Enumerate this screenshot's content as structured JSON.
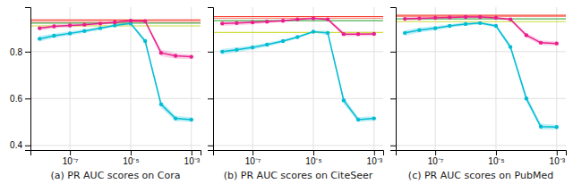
{
  "chart_data": [
    {
      "type": "line",
      "x_label": "(a) PR AUC scores on Cora",
      "x": [
        1e-08,
        3e-08,
        1e-07,
        3e-07,
        1e-06,
        3e-06,
        1e-05,
        3e-05,
        0.0001,
        0.0003,
        0.001
      ],
      "series": [
        {
          "color": "#00bcd4",
          "marker": "circle",
          "values": [
            0.855,
            0.868,
            0.878,
            0.888,
            0.9,
            0.912,
            0.92,
            0.845,
            0.575,
            0.515,
            0.51
          ],
          "errors": [
            0.012,
            0.01,
            0.009,
            0.008,
            0.007,
            0.006,
            0.005,
            0.01,
            0.015,
            0.012,
            0.01
          ]
        },
        {
          "color": "#e91e8c",
          "marker": "circle",
          "values": [
            0.9,
            0.908,
            0.912,
            0.915,
            0.92,
            0.925,
            0.932,
            0.93,
            0.795,
            0.782,
            0.778
          ],
          "errors": [
            0.01,
            0.009,
            0.008,
            0.007,
            0.006,
            0.005,
            0.005,
            0.005,
            0.015,
            0.012,
            0.01
          ]
        }
      ],
      "reference_lines": [
        {
          "value": 0.935,
          "color": "#f44336"
        },
        {
          "value": 0.928,
          "color": "#ff8a80"
        },
        {
          "value": 0.922,
          "color": "#4caf50"
        },
        {
          "value": 0.91,
          "color": "#cddc39"
        }
      ],
      "log": "x",
      "xlim": [
        5e-09,
        0.002
      ],
      "xticks": [
        {
          "value": 1e-07,
          "label": "10⁻⁷"
        },
        {
          "value": 1e-05,
          "label": "10⁻⁵"
        },
        {
          "value": 0.001,
          "label": "10⁻³"
        }
      ],
      "ylim": [
        0.38,
        0.99
      ],
      "yticks": [
        0.4,
        0.6,
        0.8
      ],
      "grid": true
    },
    {
      "type": "line",
      "x_label": "(b) PR AUC scores on CiteSeer",
      "x": [
        1e-08,
        3e-08,
        1e-07,
        3e-07,
        1e-06,
        3e-06,
        1e-05,
        3e-05,
        0.0001,
        0.0003,
        0.001
      ],
      "series": [
        {
          "color": "#00bcd4",
          "marker": "circle",
          "values": [
            0.8,
            0.808,
            0.818,
            0.83,
            0.845,
            0.862,
            0.885,
            0.88,
            0.592,
            0.51,
            0.515
          ],
          "errors": [
            0.012,
            0.01,
            0.009,
            0.008,
            0.007,
            0.006,
            0.005,
            0.01,
            0.015,
            0.01,
            0.01
          ]
        },
        {
          "color": "#e91e8c",
          "marker": "circle",
          "values": [
            0.92,
            0.922,
            0.925,
            0.928,
            0.932,
            0.938,
            0.942,
            0.938,
            0.875,
            0.875,
            0.876
          ],
          "errors": [
            0.01,
            0.009,
            0.008,
            0.007,
            0.006,
            0.005,
            0.004,
            0.005,
            0.01,
            0.009,
            0.009
          ]
        }
      ],
      "reference_lines": [
        {
          "value": 0.95,
          "color": "#f44336"
        },
        {
          "value": 0.943,
          "color": "#ff8a80"
        },
        {
          "value": 0.932,
          "color": "#4caf50"
        },
        {
          "value": 0.882,
          "color": "#cddc39"
        }
      ],
      "log": "x",
      "xlim": [
        5e-09,
        0.002
      ],
      "xticks": [
        {
          "value": 1e-07,
          "label": "10⁻⁷"
        },
        {
          "value": 1e-05,
          "label": "10⁻⁵"
        },
        {
          "value": 0.001,
          "label": "10⁻³"
        }
      ],
      "ylim": [
        0.38,
        0.99
      ],
      "yticks": [
        0.4,
        0.6,
        0.8
      ],
      "grid": true,
      "tick_labels": "x"
    },
    {
      "type": "line",
      "x_label": "(c) PR AUC scores on PubMed",
      "x": [
        1e-08,
        3e-08,
        1e-07,
        3e-07,
        1e-06,
        3e-06,
        1e-05,
        3e-05,
        0.0001,
        0.0003,
        0.001
      ],
      "series": [
        {
          "color": "#00bcd4",
          "marker": "circle",
          "values": [
            0.88,
            0.892,
            0.9,
            0.91,
            0.918,
            0.922,
            0.91,
            0.82,
            0.6,
            0.48,
            0.478
          ],
          "errors": [
            0.012,
            0.01,
            0.009,
            0.008,
            0.007,
            0.006,
            0.007,
            0.012,
            0.015,
            0.012,
            0.01
          ]
        },
        {
          "color": "#e91e8c",
          "marker": "circle",
          "values": [
            0.94,
            0.942,
            0.944,
            0.946,
            0.948,
            0.948,
            0.944,
            0.938,
            0.87,
            0.838,
            0.835
          ],
          "errors": [
            0.008,
            0.007,
            0.006,
            0.005,
            0.005,
            0.005,
            0.005,
            0.006,
            0.01,
            0.01,
            0.009
          ]
        }
      ],
      "reference_lines": [
        {
          "value": 0.955,
          "color": "#f44336"
        },
        {
          "value": 0.95,
          "color": "#ff8a80"
        },
        {
          "value": 0.94,
          "color": "#4caf50"
        },
        {
          "value": 0.928,
          "color": "#cddc39"
        }
      ],
      "log": "x",
      "xlim": [
        5e-09,
        0.002
      ],
      "xticks": [
        {
          "value": 1e-07,
          "label": "10⁻⁷"
        },
        {
          "value": 1e-05,
          "label": "10⁻⁵"
        },
        {
          "value": 0.001,
          "label": "10⁻³"
        }
      ],
      "ylim": [
        0.38,
        0.99
      ],
      "yticks": [
        0.4,
        0.6,
        0.8
      ],
      "grid": true,
      "tick_labels": "x"
    }
  ]
}
